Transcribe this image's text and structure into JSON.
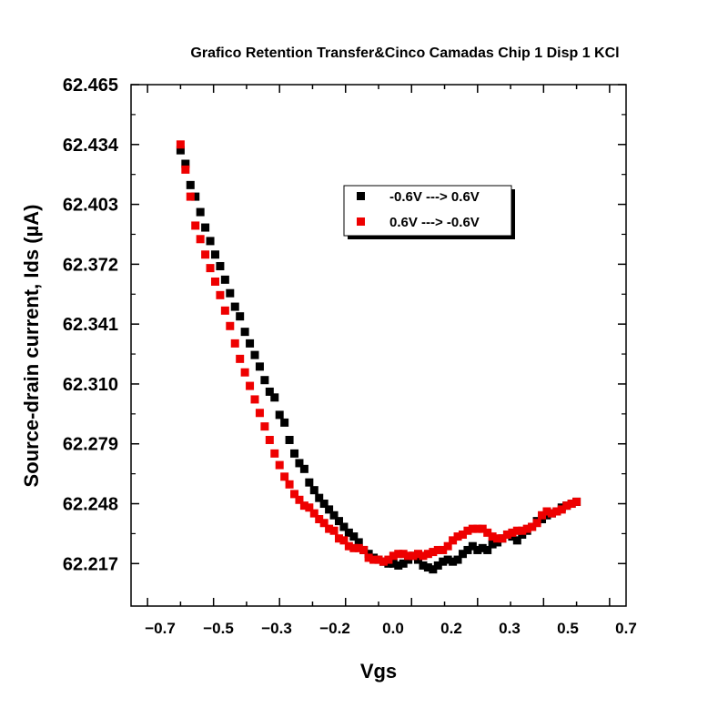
{
  "chart_data": {
    "type": "scatter",
    "title": "Grafico Retention Transfer&Cinco Camadas Chip 1 Disp 1 KCl",
    "xlabel": "Vgs",
    "ylabel": "Source-drain current, Ids (µA)",
    "xlim": [
      -0.75,
      0.75
    ],
    "ylim": [
      62.195,
      62.465
    ],
    "x_ticks": [
      -0.7,
      -0.5,
      -0.3,
      -0.2,
      0.0,
      0.2,
      0.3,
      0.5,
      0.7
    ],
    "x_tick_labels": [
      "−0.7",
      "−0.5",
      "−0.3",
      "−0.2",
      "0.0",
      "0.2",
      "0.3",
      "0.5",
      "0.7"
    ],
    "y_ticks": [
      62.217,
      62.248,
      62.279,
      62.31,
      62.341,
      62.372,
      62.403,
      62.434,
      62.465
    ],
    "y_tick_labels": [
      "62.217",
      "62.248",
      "62.279",
      "62.310",
      "62.341",
      "62.372",
      "62.403",
      "62.434",
      "62.465"
    ],
    "legend_position": "top-center",
    "grid": false,
    "series": [
      {
        "name": "-0.6V ---> 0.6V",
        "color": "#000000",
        "marker": "square",
        "x": [
          -0.6,
          -0.585,
          -0.57,
          -0.555,
          -0.54,
          -0.525,
          -0.51,
          -0.495,
          -0.48,
          -0.465,
          -0.45,
          -0.435,
          -0.42,
          -0.405,
          -0.39,
          -0.375,
          -0.36,
          -0.345,
          -0.33,
          -0.315,
          -0.3,
          -0.285,
          -0.27,
          -0.255,
          -0.24,
          -0.225,
          -0.21,
          -0.195,
          -0.18,
          -0.165,
          -0.15,
          -0.135,
          -0.12,
          -0.105,
          -0.09,
          -0.075,
          -0.06,
          -0.045,
          -0.03,
          -0.015,
          0.0,
          0.015,
          0.03,
          0.045,
          0.06,
          0.075,
          0.09,
          0.105,
          0.12,
          0.135,
          0.15,
          0.165,
          0.18,
          0.195,
          0.21,
          0.225,
          0.24,
          0.255,
          0.27,
          0.285,
          0.3,
          0.315,
          0.33,
          0.345,
          0.36,
          0.375,
          0.39,
          0.405,
          0.42,
          0.435,
          0.45,
          0.465,
          0.48,
          0.495,
          0.51,
          0.525,
          0.54,
          0.555,
          0.57,
          0.585,
          0.6
        ],
        "y": [
          62.431,
          62.424,
          62.413,
          62.407,
          62.399,
          62.391,
          62.384,
          62.377,
          62.371,
          62.364,
          62.357,
          62.35,
          62.345,
          62.337,
          62.331,
          62.325,
          62.319,
          62.312,
          62.306,
          62.303,
          62.294,
          62.29,
          62.281,
          62.274,
          62.269,
          62.266,
          62.259,
          62.255,
          62.251,
          62.248,
          62.245,
          62.242,
          62.239,
          62.236,
          62.233,
          62.231,
          62.228,
          62.224,
          62.222,
          62.22,
          62.219,
          62.218,
          62.217,
          62.217,
          62.216,
          62.217,
          62.219,
          62.221,
          62.219,
          62.216,
          62.215,
          62.214,
          62.216,
          62.218,
          62.219,
          62.218,
          62.219,
          62.222,
          62.224,
          62.226,
          62.224,
          62.225,
          62.224,
          62.227,
          62.228,
          62.23,
          62.232,
          62.231,
          62.229,
          62.232,
          62.234,
          62.236,
          62.239,
          62.24,
          62.242,
          62.243,
          62.244,
          62.246,
          62.247,
          62.248,
          62.249
        ]
      },
      {
        "name": "0.6V ---> -0.6V",
        "color": "#ee0000",
        "marker": "square",
        "x": [
          0.6,
          0.585,
          0.57,
          0.555,
          0.54,
          0.525,
          0.51,
          0.495,
          0.48,
          0.465,
          0.45,
          0.435,
          0.42,
          0.405,
          0.39,
          0.375,
          0.36,
          0.345,
          0.33,
          0.315,
          0.3,
          0.285,
          0.27,
          0.255,
          0.24,
          0.225,
          0.21,
          0.195,
          0.18,
          0.165,
          0.15,
          0.135,
          0.12,
          0.105,
          0.09,
          0.075,
          0.06,
          0.045,
          0.03,
          0.015,
          0.0,
          -0.015,
          -0.03,
          -0.045,
          -0.06,
          -0.075,
          -0.09,
          -0.105,
          -0.12,
          -0.135,
          -0.15,
          -0.165,
          -0.18,
          -0.195,
          -0.21,
          -0.225,
          -0.24,
          -0.255,
          -0.27,
          -0.285,
          -0.3,
          -0.315,
          -0.33,
          -0.345,
          -0.36,
          -0.375,
          -0.39,
          -0.405,
          -0.42,
          -0.435,
          -0.45,
          -0.465,
          -0.48,
          -0.495,
          -0.51,
          -0.525,
          -0.54,
          -0.555,
          -0.57,
          -0.585,
          -0.6
        ],
        "y": [
          62.249,
          62.248,
          62.247,
          62.245,
          62.244,
          62.243,
          62.244,
          62.242,
          62.238,
          62.236,
          62.235,
          62.234,
          62.234,
          62.233,
          62.232,
          62.23,
          62.23,
          62.231,
          62.233,
          62.235,
          62.235,
          62.235,
          62.234,
          62.232,
          62.231,
          62.229,
          62.226,
          62.224,
          62.224,
          62.223,
          62.222,
          62.221,
          62.222,
          62.221,
          62.221,
          62.222,
          62.222,
          62.221,
          62.219,
          62.218,
          62.219,
          62.219,
          62.22,
          62.224,
          62.225,
          62.225,
          62.226,
          62.229,
          62.23,
          62.234,
          62.235,
          62.238,
          62.24,
          62.243,
          62.246,
          62.247,
          62.25,
          62.253,
          62.258,
          62.262,
          62.268,
          62.274,
          62.281,
          62.288,
          62.295,
          62.302,
          62.309,
          62.316,
          62.323,
          62.331,
          62.34,
          62.348,
          62.356,
          62.363,
          62.37,
          62.377,
          62.385,
          62.392,
          62.407,
          62.421,
          62.434
        ]
      }
    ]
  }
}
